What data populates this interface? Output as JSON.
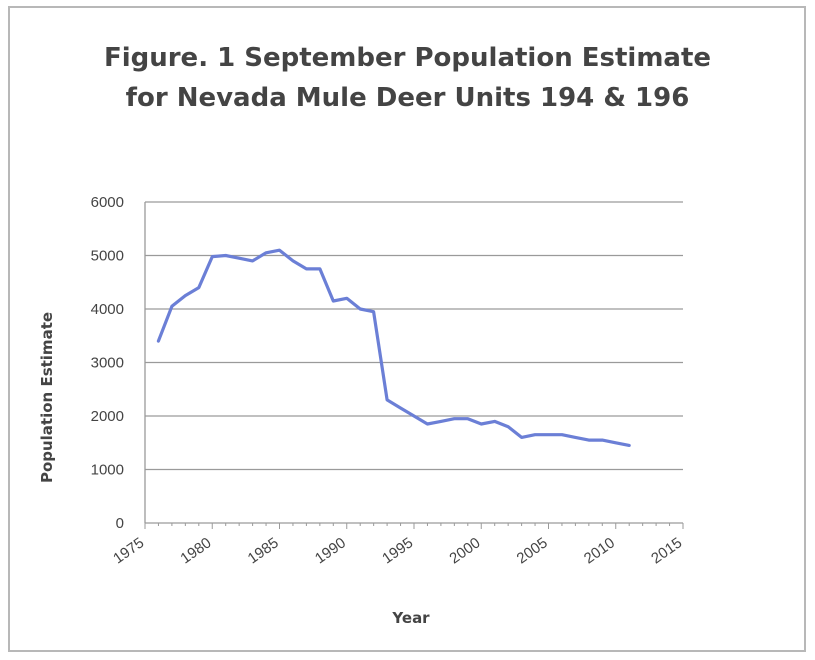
{
  "chart_data": {
    "type": "line",
    "title_lines": [
      "Figure. 1 September Population Estimate",
      "for Nevada Mule Deer Units 194 & 196"
    ],
    "xlabel": "Year",
    "ylabel": "Population Estimate",
    "xlim": [
      1975,
      2015
    ],
    "ylim": [
      0,
      6000
    ],
    "x_ticks": [
      1975,
      1980,
      1985,
      1990,
      1995,
      2000,
      2005,
      2010,
      2015
    ],
    "y_ticks": [
      0,
      1000,
      2000,
      3000,
      4000,
      5000,
      6000
    ],
    "grid": true,
    "legend": false,
    "line_color": "#6b7fd6",
    "series": [
      {
        "x": [
          1976,
          1977,
          1978,
          1979,
          1980,
          1981,
          1982,
          1983,
          1984,
          1985,
          1986,
          1987,
          1988,
          1989,
          1990,
          1991,
          1992,
          1993,
          1994,
          1995,
          1996,
          1997,
          1998,
          1999,
          2000,
          2001,
          2002,
          2003,
          2004,
          2005,
          2006,
          2007,
          2008,
          2009,
          2010,
          2011
        ],
        "y": [
          3400,
          4050,
          4250,
          4400,
          4980,
          5000,
          4950,
          4900,
          5050,
          5100,
          4900,
          4750,
          4750,
          4150,
          4200,
          4000,
          3950,
          2300,
          2150,
          2000,
          1850,
          1900,
          1950,
          1950,
          1850,
          1900,
          1800,
          1600,
          1650,
          1650,
          1650,
          1600,
          1550,
          1550,
          1500,
          1450
        ]
      }
    ]
  }
}
